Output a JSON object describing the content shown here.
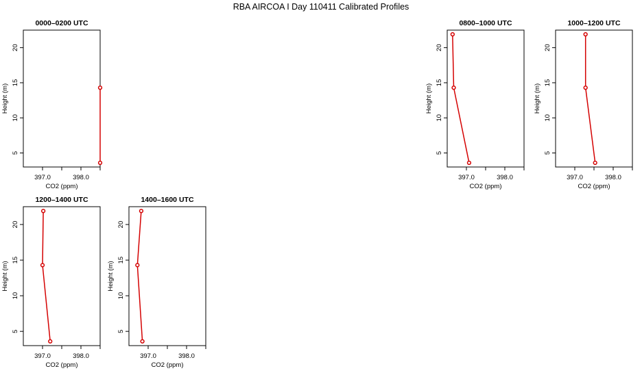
{
  "title": "RBA AIRCOA I  Day 110411  Calibrated Profiles",
  "chart_data": [
    {
      "type": "line",
      "title": "0000–0200 UTC",
      "xlabel": "CO2 (ppm)",
      "ylabel": "Height (m)",
      "xlim": [
        396.5,
        398.5
      ],
      "ylim": [
        3,
        22.5
      ],
      "xticks": [
        397.0,
        397.5,
        398.0,
        398.5
      ],
      "xtick_labels": [
        "397.0",
        "",
        "398.0",
        ""
      ],
      "yticks": [
        5,
        10,
        15,
        20
      ],
      "ytick_labels": [
        "5",
        "10",
        "15",
        "20"
      ],
      "series": [
        {
          "x": [
            398.5,
            398.5
          ],
          "y": [
            3.6,
            14.3
          ]
        }
      ],
      "color": "#d40000",
      "grid": false
    },
    {
      "type": "line",
      "title": "0800–1000 UTC",
      "xlabel": "CO2 (ppm)",
      "ylabel": "Height (m)",
      "xlim": [
        396.5,
        398.5
      ],
      "ylim": [
        3,
        22.5
      ],
      "xticks": [
        397.0,
        397.5,
        398.0,
        398.5
      ],
      "xtick_labels": [
        "397.0",
        "",
        "398.0",
        ""
      ],
      "yticks": [
        5,
        10,
        15,
        20
      ],
      "ytick_labels": [
        "5",
        "10",
        "15",
        "20"
      ],
      "series": [
        {
          "x": [
            397.07,
            396.67,
            396.64
          ],
          "y": [
            3.6,
            14.3,
            21.9
          ]
        }
      ],
      "color": "#d40000",
      "grid": false
    },
    {
      "type": "line",
      "title": "1000–1200 UTC",
      "xlabel": "CO2 (ppm)",
      "ylabel": "Height (m)",
      "xlim": [
        396.5,
        398.5
      ],
      "ylim": [
        3,
        22.5
      ],
      "xticks": [
        397.0,
        397.5,
        398.0,
        398.5
      ],
      "xtick_labels": [
        "397.0",
        "",
        "398.0",
        ""
      ],
      "yticks": [
        5,
        10,
        15,
        20
      ],
      "ytick_labels": [
        "5",
        "10",
        "15",
        "20"
      ],
      "series": [
        {
          "x": [
            397.53,
            397.28,
            397.28
          ],
          "y": [
            3.6,
            14.3,
            21.9
          ]
        }
      ],
      "color": "#d40000",
      "grid": false
    },
    {
      "type": "line",
      "title": "1200–1400 UTC",
      "xlabel": "CO2 (ppm)",
      "ylabel": "Height (m)",
      "xlim": [
        396.5,
        398.5
      ],
      "ylim": [
        3,
        22.5
      ],
      "xticks": [
        397.0,
        397.5,
        398.0,
        398.5
      ],
      "xtick_labels": [
        "397.0",
        "",
        "398.0",
        ""
      ],
      "yticks": [
        5,
        10,
        15,
        20
      ],
      "ytick_labels": [
        "5",
        "10",
        "15",
        "20"
      ],
      "series": [
        {
          "x": [
            397.2,
            397.0,
            397.02
          ],
          "y": [
            3.6,
            14.3,
            21.9
          ]
        }
      ],
      "color": "#d40000",
      "grid": false
    },
    {
      "type": "line",
      "title": "1400–1600 UTC",
      "xlabel": "CO2 (ppm)",
      "ylabel": "Height (m)",
      "xlim": [
        396.5,
        398.5
      ],
      "ylim": [
        3,
        22.5
      ],
      "xticks": [
        397.0,
        397.5,
        398.0,
        398.5
      ],
      "xtick_labels": [
        "397.0",
        "",
        "398.0",
        ""
      ],
      "yticks": [
        5,
        10,
        15,
        20
      ],
      "ytick_labels": [
        "5",
        "10",
        "15",
        "20"
      ],
      "series": [
        {
          "x": [
            396.85,
            396.72,
            396.82
          ],
          "y": [
            3.6,
            14.3,
            21.9
          ]
        }
      ],
      "color": "#d40000",
      "grid": false
    }
  ]
}
